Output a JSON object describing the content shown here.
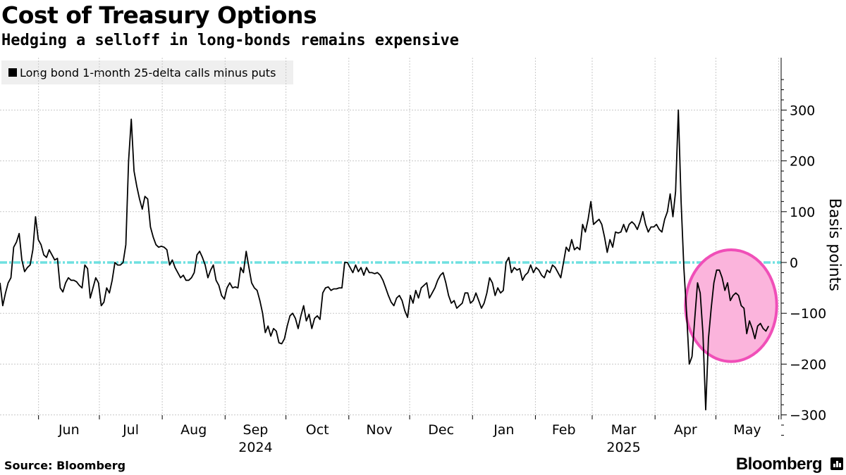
{
  "title": "Cost of Treasury Options",
  "subtitle": "Hedging a selloff in long-bonds remains expensive",
  "source": "Source: Bloomberg",
  "brand": "Bloomberg",
  "colors": {
    "series": "#000000",
    "zero_line": "#6fe0e0",
    "highlight_fill": "#fbb4dc",
    "highlight_stroke": "#f04fb8",
    "grid": "#c8c8c8"
  },
  "chart_data": {
    "type": "line",
    "title": "Cost of Treasury Options",
    "subtitle": "Hedging a selloff in long-bonds remains expensive",
    "ylabel": "Basis points",
    "xlabel": "",
    "ylim": [
      -350,
      360
    ],
    "yticks": [
      300,
      200,
      100,
      0,
      -100,
      -200,
      -300
    ],
    "ytick_labels": [
      "300",
      "200",
      "100",
      "0",
      "−100",
      "−200",
      "−300"
    ],
    "x_start": "2024-05-13",
    "x_end": "2025-05-29",
    "months": [
      "Jun",
      "Jul",
      "Aug",
      "Sep",
      "Oct",
      "Nov",
      "Dec",
      "Jan",
      "Feb",
      "Mar",
      "Apr",
      "May"
    ],
    "years": [
      {
        "label": "2024",
        "month_index": 3
      },
      {
        "label": "2025",
        "month_index": 9
      }
    ],
    "reference_line": 0,
    "highlight": {
      "type": "circle",
      "x_range": [
        "2025-04-16",
        "2025-05-31"
      ],
      "y_range": [
        -195,
        25
      ]
    },
    "series": [
      {
        "name": "Long bond 1-month 25-delta calls minus puts",
        "values": [
          -40,
          -85,
          -60,
          -40,
          -30,
          30,
          40,
          57,
          5,
          -18,
          -10,
          -5,
          25,
          90,
          45,
          35,
          15,
          10,
          25,
          15,
          5,
          8,
          -50,
          -58,
          -40,
          -30,
          -35,
          -35,
          -38,
          -45,
          -50,
          -5,
          -12,
          -70,
          -50,
          -30,
          -40,
          -85,
          -78,
          -50,
          -60,
          -35,
          0,
          -5,
          -5,
          0,
          35,
          200,
          282,
          180,
          150,
          125,
          105,
          130,
          125,
          70,
          50,
          35,
          30,
          32,
          30,
          25,
          -5,
          5,
          -10,
          -20,
          -30,
          -25,
          -35,
          -35,
          -30,
          -20,
          15,
          22,
          10,
          -5,
          -30,
          -15,
          -5,
          -35,
          -45,
          -65,
          -72,
          -50,
          -40,
          -50,
          -48,
          -50,
          -10,
          -20,
          22,
          -10,
          -40,
          -50,
          -55,
          -75,
          -100,
          -138,
          -125,
          -145,
          -130,
          -135,
          -158,
          -160,
          -150,
          -125,
          -105,
          -100,
          -110,
          -130,
          -105,
          -85,
          -115,
          -102,
          -130,
          -110,
          -105,
          -112,
          -60,
          -50,
          -48,
          -55,
          -52,
          -52,
          -50,
          -50,
          0,
          0,
          -10,
          -20,
          -5,
          -18,
          -10,
          -25,
          -10,
          -20,
          -20,
          -22,
          -20,
          -25,
          -35,
          -50,
          -65,
          -78,
          -85,
          -70,
          -65,
          -75,
          -95,
          -108,
          -65,
          -80,
          -55,
          -70,
          -50,
          -45,
          -40,
          -70,
          -60,
          -50,
          -35,
          -25,
          -20,
          -40,
          -65,
          -80,
          -75,
          -90,
          -85,
          -80,
          -60,
          -60,
          -80,
          -75,
          -60,
          -75,
          -90,
          -80,
          -60,
          -30,
          -40,
          -65,
          -50,
          -60,
          -55,
          0,
          10,
          -20,
          -10,
          -15,
          -12,
          -35,
          -25,
          -20,
          -5,
          -20,
          -10,
          -15,
          -25,
          -30,
          -15,
          -20,
          -5,
          -10,
          -20,
          -30,
          0,
          30,
          22,
          45,
          25,
          30,
          25,
          75,
          60,
          85,
          120,
          75,
          80,
          85,
          75,
          50,
          20,
          45,
          30,
          60,
          58,
          60,
          75,
          60,
          75,
          80,
          75,
          65,
          80,
          100,
          75,
          60,
          70,
          70,
          75,
          65,
          60,
          85,
          100,
          135,
          90,
          140,
          300,
          120,
          -10,
          -100,
          -200,
          -185,
          -110,
          -40,
          -60,
          -140,
          -290,
          -150,
          -90,
          -40,
          -15,
          -15,
          -30,
          -55,
          -40,
          -75,
          -65,
          -60,
          -65,
          -85,
          -90,
          -140,
          -115,
          -130,
          -150,
          -125,
          -120,
          -130,
          -135,
          -125
        ]
      }
    ]
  }
}
